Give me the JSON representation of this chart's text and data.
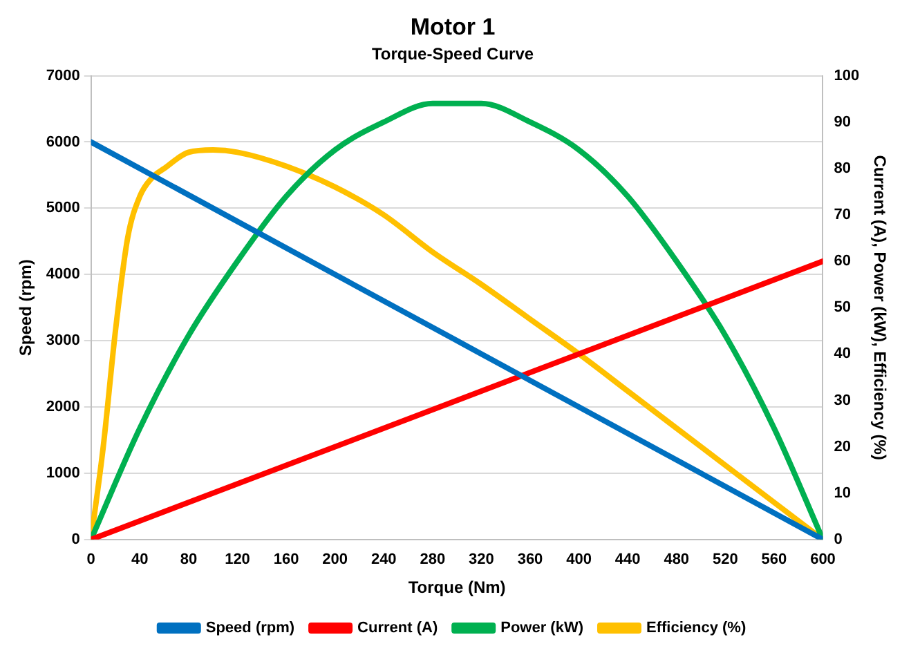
{
  "chart_data": {
    "type": "line",
    "title": "Motor 1",
    "subtitle": "Torque-Speed Curve",
    "xlabel": "Torque (Nm)",
    "ylabel": "Speed (rpm)",
    "y2label": "Current (A), Power (kW), Efficiency (%)",
    "xlim": [
      0,
      600
    ],
    "xticks": [
      0,
      40,
      80,
      120,
      160,
      200,
      240,
      280,
      320,
      360,
      400,
      440,
      480,
      520,
      560,
      600
    ],
    "ylim": [
      0,
      7000
    ],
    "yticks": [
      0,
      1000,
      2000,
      3000,
      4000,
      5000,
      6000,
      7000
    ],
    "y2lim": [
      0,
      100
    ],
    "y2ticks": [
      0,
      10,
      20,
      30,
      40,
      50,
      60,
      70,
      80,
      90,
      100
    ],
    "grid": "y",
    "legend": "bottom",
    "marker": "none",
    "line_style": "solid",
    "series": [
      {
        "name": "Speed (rpm)",
        "color": "#0070c0",
        "x": [
          0,
          600
        ],
        "values": [
          6000,
          0
        ]
      },
      {
        "name": "Current (A)",
        "color": "#ff0000",
        "axis": "y2",
        "x": [
          0,
          600
        ],
        "values": [
          0,
          60
        ]
      },
      {
        "name": "Power (kW)",
        "color": "#00b050",
        "axis": "y2",
        "x": [
          0,
          40,
          80,
          120,
          160,
          200,
          240,
          280,
          300,
          320,
          360,
          400,
          440,
          480,
          520,
          560,
          600
        ],
        "values": [
          0,
          24,
          44,
          60,
          74,
          84,
          90,
          94,
          94,
          94,
          90,
          84,
          74,
          60,
          44,
          24,
          0
        ]
      },
      {
        "name": "Efficiency (%)",
        "color": "#ffc000",
        "axis": "y2",
        "x": [
          0,
          10,
          20,
          30,
          40,
          50,
          60,
          80,
          100,
          120,
          160,
          200,
          240,
          280,
          320,
          360,
          400,
          440,
          480,
          520,
          560,
          600
        ],
        "values": [
          0,
          20,
          45,
          65,
          74,
          78,
          80,
          83.5,
          84,
          83.5,
          80.5,
          76,
          70,
          62,
          55,
          47.5,
          40,
          32,
          24,
          16,
          8,
          0
        ]
      }
    ]
  }
}
